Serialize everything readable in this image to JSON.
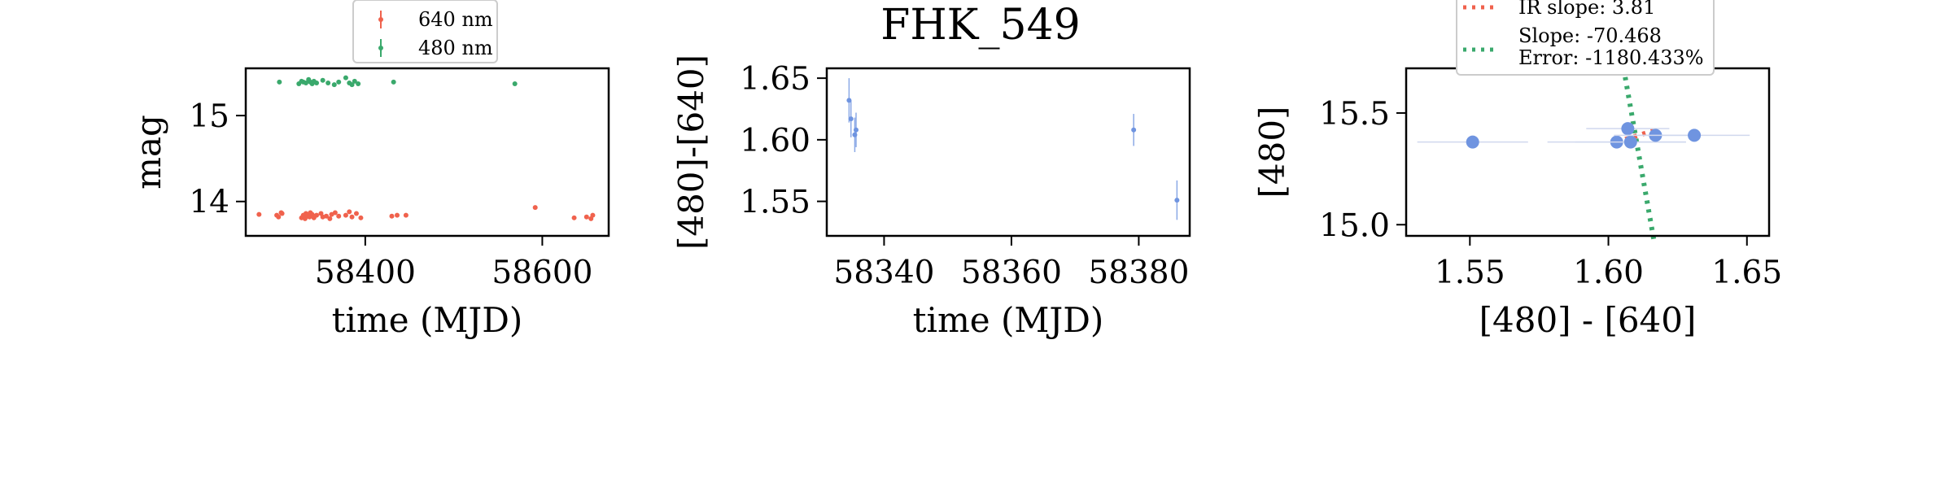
{
  "chart_data": [
    {
      "type": "scatter",
      "title": "",
      "xlabel": "time (MJD)",
      "ylabel": "mag",
      "xlim": [
        58265,
        58675
      ],
      "ylim": [
        15.55,
        13.6
      ],
      "xticks": [
        "58400",
        "58600"
      ],
      "xtick_values": [
        58400,
        58600
      ],
      "yticks": [
        "14",
        "15"
      ],
      "ytick_values": [
        14,
        15
      ],
      "legend_position": "above",
      "series": [
        {
          "name": "640 nm",
          "color": "#f0624d",
          "points": [
            [
              58280,
              13.85
            ],
            [
              58300,
              13.84
            ],
            [
              58302,
              13.82
            ],
            [
              58305,
              13.87
            ],
            [
              58306,
              13.86
            ],
            [
              58328,
              13.81
            ],
            [
              58330,
              13.84
            ],
            [
              58332,
              13.8
            ],
            [
              58333,
              13.86
            ],
            [
              58335,
              13.83
            ],
            [
              58337,
              13.82
            ],
            [
              58338,
              13.87
            ],
            [
              58340,
              13.85
            ],
            [
              58342,
              13.81
            ],
            [
              58345,
              13.84
            ],
            [
              58350,
              13.86
            ],
            [
              58352,
              13.82
            ],
            [
              58356,
              13.83
            ],
            [
              58360,
              13.8
            ],
            [
              58362,
              13.85
            ],
            [
              58366,
              13.87
            ],
            [
              58370,
              13.83
            ],
            [
              58378,
              13.84
            ],
            [
              58382,
              13.88
            ],
            [
              58385,
              13.82
            ],
            [
              58390,
              13.86
            ],
            [
              58395,
              13.81
            ],
            [
              58430,
              13.83
            ],
            [
              58436,
              13.84
            ],
            [
              58446,
              13.84
            ],
            [
              58592,
              13.93
            ],
            [
              58636,
              13.81
            ],
            [
              58650,
              13.82
            ],
            [
              58655,
              13.8
            ],
            [
              58657,
              13.84
            ]
          ]
        },
        {
          "name": "480 nm",
          "color": "#3aa96c",
          "points": [
            [
              58303,
              15.39
            ],
            [
              58325,
              15.37
            ],
            [
              58328,
              15.4
            ],
            [
              58330,
              15.39
            ],
            [
              58333,
              15.38
            ],
            [
              58336,
              15.42
            ],
            [
              58338,
              15.39
            ],
            [
              58340,
              15.37
            ],
            [
              58342,
              15.4
            ],
            [
              58345,
              15.38
            ],
            [
              58352,
              15.41
            ],
            [
              58358,
              15.38
            ],
            [
              58365,
              15.36
            ],
            [
              58370,
              15.39
            ],
            [
              58378,
              15.44
            ],
            [
              58382,
              15.38
            ],
            [
              58385,
              15.36
            ],
            [
              58388,
              15.4
            ],
            [
              58392,
              15.37
            ],
            [
              58432,
              15.39
            ],
            [
              58569,
              15.37
            ]
          ]
        }
      ]
    },
    {
      "type": "scatter",
      "title": "FHK_549",
      "xlabel": "time (MJD)",
      "ylabel": "[480]-[640]",
      "xlim": [
        58331,
        58388
      ],
      "ylim": [
        1.658,
        1.522
      ],
      "xticks": [
        "58340",
        "58360",
        "58380"
      ],
      "xtick_values": [
        58340,
        58360,
        58380
      ],
      "yticks": [
        "1.55",
        "1.60",
        "1.65"
      ],
      "ytick_values": [
        1.55,
        1.6,
        1.65
      ],
      "series": [
        {
          "name": "",
          "color": "#6f94e0",
          "points": [
            [
              58334.5,
              1.632,
              0.018
            ],
            [
              58334.8,
              1.617,
              0.015
            ],
            [
              58335.4,
              1.604,
              0.014
            ],
            [
              58335.6,
              1.608,
              0.014
            ],
            [
              58379.2,
              1.608,
              0.013
            ],
            [
              58386.0,
              1.551,
              0.016
            ]
          ]
        }
      ]
    },
    {
      "type": "scatter",
      "title": "",
      "xlabel": "[480] - [640]",
      "ylabel": "[480]",
      "xlim": [
        1.527,
        1.658
      ],
      "ylim": [
        15.7,
        14.95
      ],
      "xticks": [
        "1.55",
        "1.60",
        "1.65"
      ],
      "xtick_values": [
        1.55,
        1.6,
        1.65
      ],
      "yticks": [
        "15.0",
        "15.5"
      ],
      "ytick_values": [
        15.0,
        15.5
      ],
      "legend_position": "top-center",
      "legend": [
        "IR slope: 3.81",
        "Slope: -70.468",
        "Error: -1180.433%"
      ],
      "series": [
        {
          "name": "",
          "color": "#6f94e0",
          "points": [
            [
              1.551,
              15.37,
              0.02
            ],
            [
              1.603,
              15.37,
              0.025
            ],
            [
              1.608,
              15.37,
              0.02
            ],
            [
              1.607,
              15.43,
              0.015
            ],
            [
              1.617,
              15.4,
              0.015
            ],
            [
              1.631,
              15.4,
              0.02
            ]
          ]
        }
      ],
      "lines": [
        {
          "label": "IR slope: 3.81",
          "color": "#f0624d",
          "slope": 3.81,
          "x": [
            1.603,
            1.617
          ],
          "y0": 15.37
        },
        {
          "label": "Slope: -70.468",
          "color": "#3aa96c",
          "slope": -70.468,
          "x": [
            1.6055,
            1.6165
          ],
          "y0": 15.7
        }
      ]
    }
  ]
}
